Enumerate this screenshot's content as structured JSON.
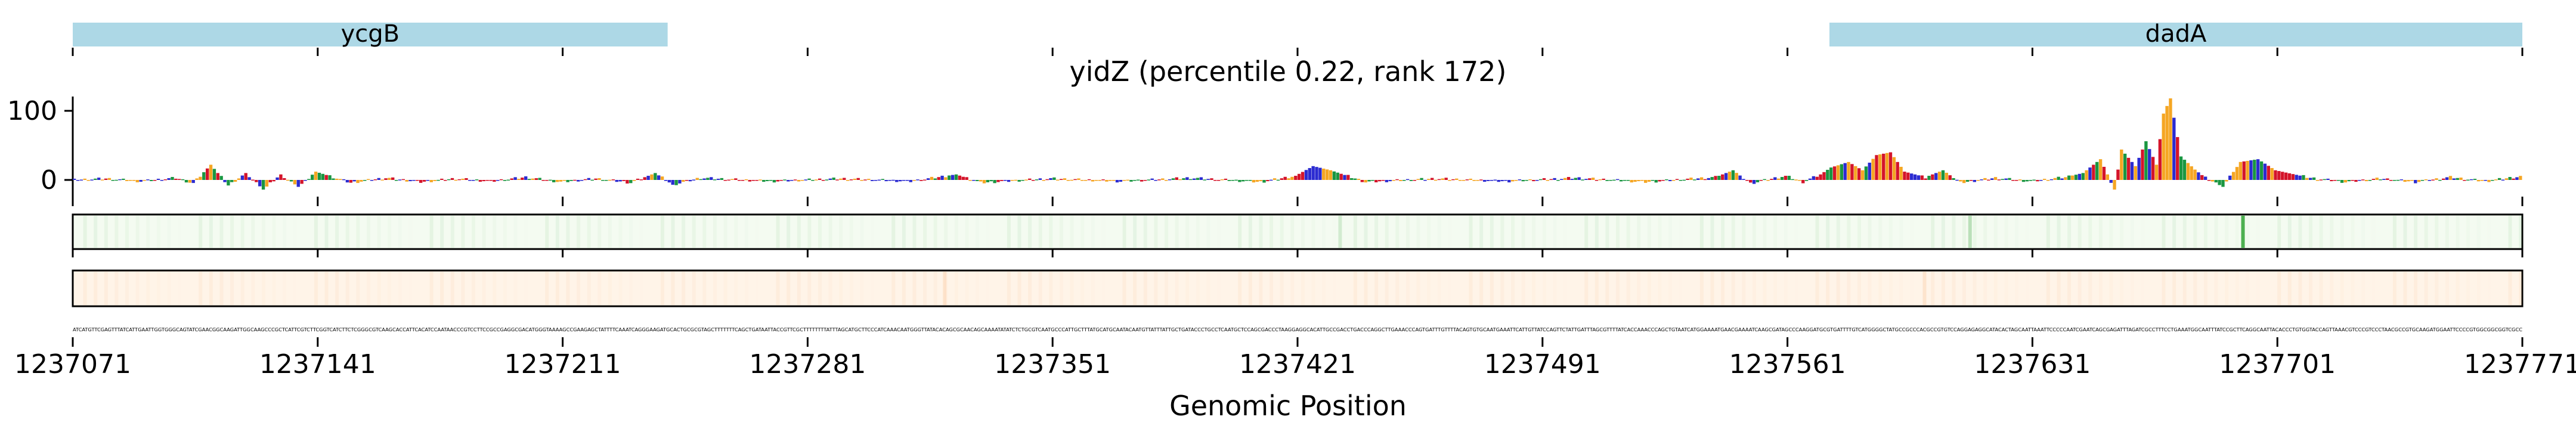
{
  "chart_data": {
    "type": "line",
    "title": "yidZ (percentile 0.22, rank 172)",
    "xlabel": "Genomic Position",
    "ylabel": "",
    "xlim": [
      1237071,
      1237771
    ],
    "x_ticks": [
      "1237071",
      "1237141",
      "1237211",
      "1237281",
      "1237351",
      "1237421",
      "1237491",
      "1237561",
      "1237631",
      "1237701",
      "1237771"
    ],
    "y_ticks": [
      "0",
      "100"
    ],
    "ylim": [
      -20,
      120
    ],
    "genes": [
      {
        "name": "ycgB",
        "start": 1237071,
        "end": 1237241,
        "color": "#add8e6"
      },
      {
        "name": "dadA",
        "start": 1237573,
        "end": 1237771,
        "color": "#add8e6"
      }
    ],
    "series": [
      {
        "values": [
          [
            1237071,
            0
          ],
          [
            1237080,
            2
          ],
          [
            1237090,
            -2
          ],
          [
            1237100,
            3
          ],
          [
            1237105,
            -5
          ],
          [
            1237110,
            22
          ],
          [
            1237115,
            -8
          ],
          [
            1237120,
            10
          ],
          [
            1237125,
            -14
          ],
          [
            1237130,
            8
          ],
          [
            1237135,
            -10
          ],
          [
            1237140,
            12
          ],
          [
            1237150,
            -4
          ],
          [
            1237160,
            3
          ],
          [
            1237170,
            -3
          ],
          [
            1237180,
            2
          ],
          [
            1237190,
            -2
          ],
          [
            1237200,
            4
          ],
          [
            1237210,
            -3
          ],
          [
            1237220,
            2
          ],
          [
            1237230,
            -4
          ],
          [
            1237237,
            10
          ],
          [
            1237242,
            -7
          ],
          [
            1237250,
            3
          ],
          [
            1237270,
            -2
          ],
          [
            1237290,
            2
          ],
          [
            1237310,
            -2
          ],
          [
            1237323,
            8
          ],
          [
            1237330,
            -4
          ],
          [
            1237350,
            2
          ],
          [
            1237370,
            -2
          ],
          [
            1237390,
            3
          ],
          [
            1237410,
            -3
          ],
          [
            1237420,
            6
          ],
          [
            1237425,
            20
          ],
          [
            1237430,
            14
          ],
          [
            1237440,
            -3
          ],
          [
            1237460,
            2
          ],
          [
            1237480,
            -2
          ],
          [
            1237500,
            3
          ],
          [
            1237520,
            -3
          ],
          [
            1237540,
            4
          ],
          [
            1237545,
            14
          ],
          [
            1237550,
            -5
          ],
          [
            1237560,
            6
          ],
          [
            1237565,
            -3
          ],
          [
            1237570,
            8
          ],
          [
            1237573,
            18
          ],
          [
            1237578,
            26
          ],
          [
            1237582,
            14
          ],
          [
            1237586,
            36
          ],
          [
            1237590,
            40
          ],
          [
            1237594,
            12
          ],
          [
            1237600,
            4
          ],
          [
            1237605,
            14
          ],
          [
            1237610,
            -4
          ],
          [
            1237620,
            3
          ],
          [
            1237630,
            -2
          ],
          [
            1237640,
            4
          ],
          [
            1237645,
            10
          ],
          [
            1237650,
            30
          ],
          [
            1237654,
            -14
          ],
          [
            1237656,
            44
          ],
          [
            1237660,
            20
          ],
          [
            1237663,
            56
          ],
          [
            1237666,
            22
          ],
          [
            1237668,
            96
          ],
          [
            1237670,
            118
          ],
          [
            1237673,
            34
          ],
          [
            1237677,
            15
          ],
          [
            1237680,
            3
          ],
          [
            1237685,
            -10
          ],
          [
            1237690,
            26
          ],
          [
            1237695,
            30
          ],
          [
            1237700,
            14
          ],
          [
            1237710,
            3
          ],
          [
            1237720,
            -3
          ],
          [
            1237730,
            2
          ],
          [
            1237740,
            -3
          ],
          [
            1237750,
            4
          ],
          [
            1237760,
            -2
          ],
          [
            1237771,
            6
          ]
        ]
      }
    ],
    "heat_track_1": {
      "hot": [
        [
          1237691,
          1.0
        ],
        [
          1237613,
          0.35
        ],
        [
          1237433,
          0.2
        ]
      ]
    },
    "heat_track_2": {
      "hot": [
        [
          1237320,
          0.2
        ],
        [
          1237600,
          0.2
        ]
      ]
    },
    "sequence": "ATCATGTTCGAGTTTATCATTGAATTGGTGGGCAGTATCGAACGGCAAGATTGGCAAGCCCGCTCATTCGTCTTCGGTCATCTTCTCGGGCGTCAAGCACCATTCACATCCAATAACCCGTCCTTCCGCCGAGGCGACATGGGTAAAAGCCGAAGAGCTATTTTCAAATCAGGGAAGATGCACTGCGCGTAGCTTTTTTTCAGCTGATAATTACCGTTCGCTTTTTTTTATTTAGCATGCTTCCCATCAAACAATGGGTTATACACAGCGCAACAGCAAAATATATCTCTGCGTCAATGCCCATTGCTTTATGCATGCAATACAATGTTATTTATTGCTGATACCCTGCCTCAATGCTCCAGCGACCCTAAGGAGGCACATTGCCGACCTGACCCAGGCTTGAAACCCAGTGATTTGTTTTACAGTGTGCAATGAAATTCATTGTTATCCAGTTCTATTGATTTAGCGTTTTATCACCAAACCCAGCTGTAATCATGGAAAATGAACGAAAATCAAGCGATAGCCCAAGGATGCGTGATTTTGTCATGGGGCTATGCCGCCCACGCCGTGTCCAGGAGAGGCATACACTAGCAATTAAATTCCCCCAATCGAATCAGCGAGATTTAGATCGCCTTTCCTGAAATGGCAATTTATCCGCTTCAGGCAATTACACCCTGTGGTACCAGTTAAACGTCCCGTCCCTAACGCCGTGCAAGATGGAATTCCCCGTGGCGGCGGTCGCC"
  }
}
